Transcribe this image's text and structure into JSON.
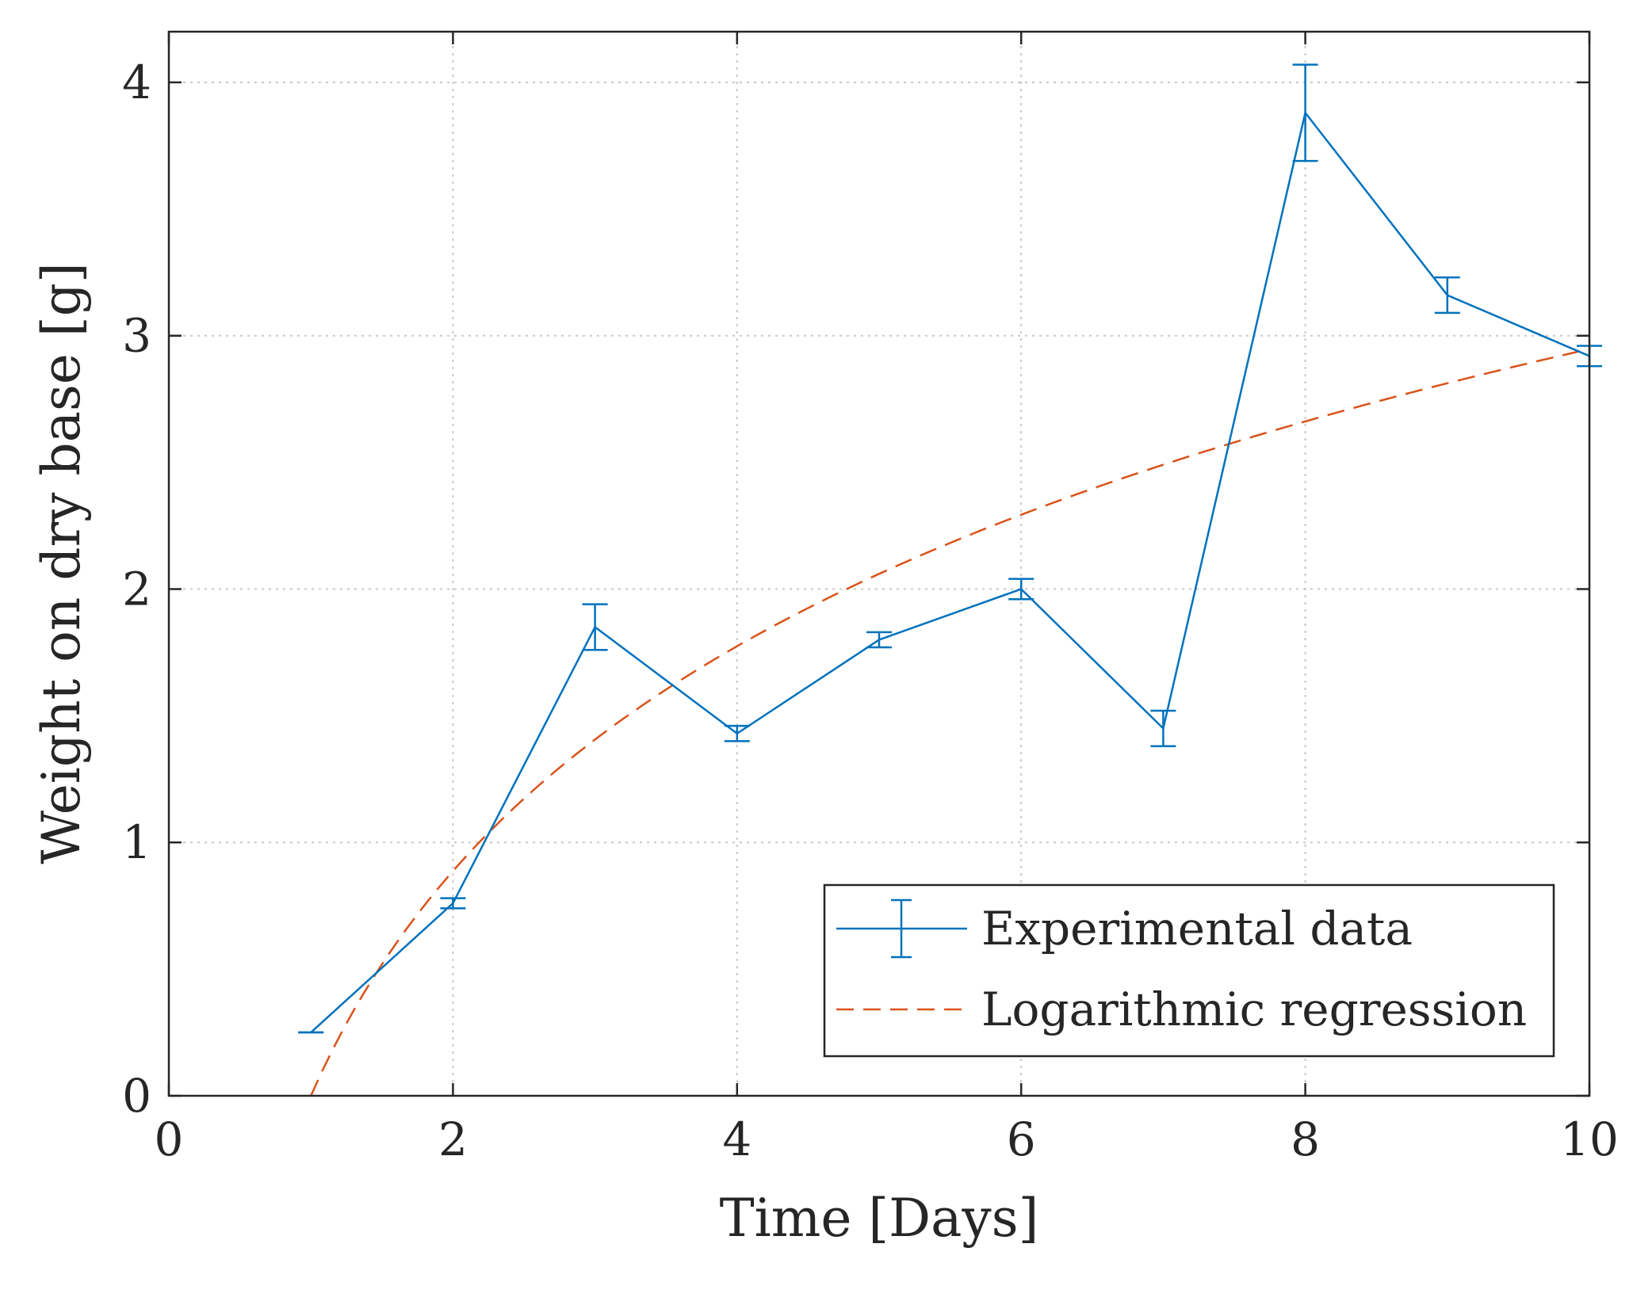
{
  "chart_data": {
    "type": "line",
    "xlabel": "Time [Days]",
    "ylabel": "Weight on dry base [g]",
    "xlim": [
      0,
      10
    ],
    "ylim": [
      0,
      4.2
    ],
    "xticks": [
      0,
      2,
      4,
      6,
      8,
      10
    ],
    "yticks": [
      0,
      1,
      2,
      3,
      4
    ],
    "xtick_labels": [
      "0",
      "2",
      "4",
      "6",
      "8",
      "10"
    ],
    "ytick_labels": [
      "0",
      "1",
      "2",
      "3",
      "4"
    ],
    "grid": true,
    "legend_position": "bottom-right",
    "series": [
      {
        "name": "Experimental data",
        "style": "solid",
        "color": "#0072BD",
        "x": [
          1,
          2,
          3,
          4,
          5,
          6,
          7,
          8,
          9,
          10
        ],
        "y": [
          0.25,
          0.76,
          1.85,
          1.43,
          1.8,
          2.0,
          1.45,
          3.88,
          3.16,
          2.92
        ],
        "error": [
          0.0,
          0.02,
          0.09,
          0.03,
          0.03,
          0.04,
          0.07,
          0.19,
          0.07,
          0.04
        ]
      },
      {
        "name": "Logarithmic regression",
        "style": "dashed",
        "color": "#D95319",
        "function": "y = a + b*ln(x)",
        "a": 0.0,
        "b": 1.28,
        "x_range": [
          1,
          10
        ]
      }
    ]
  }
}
